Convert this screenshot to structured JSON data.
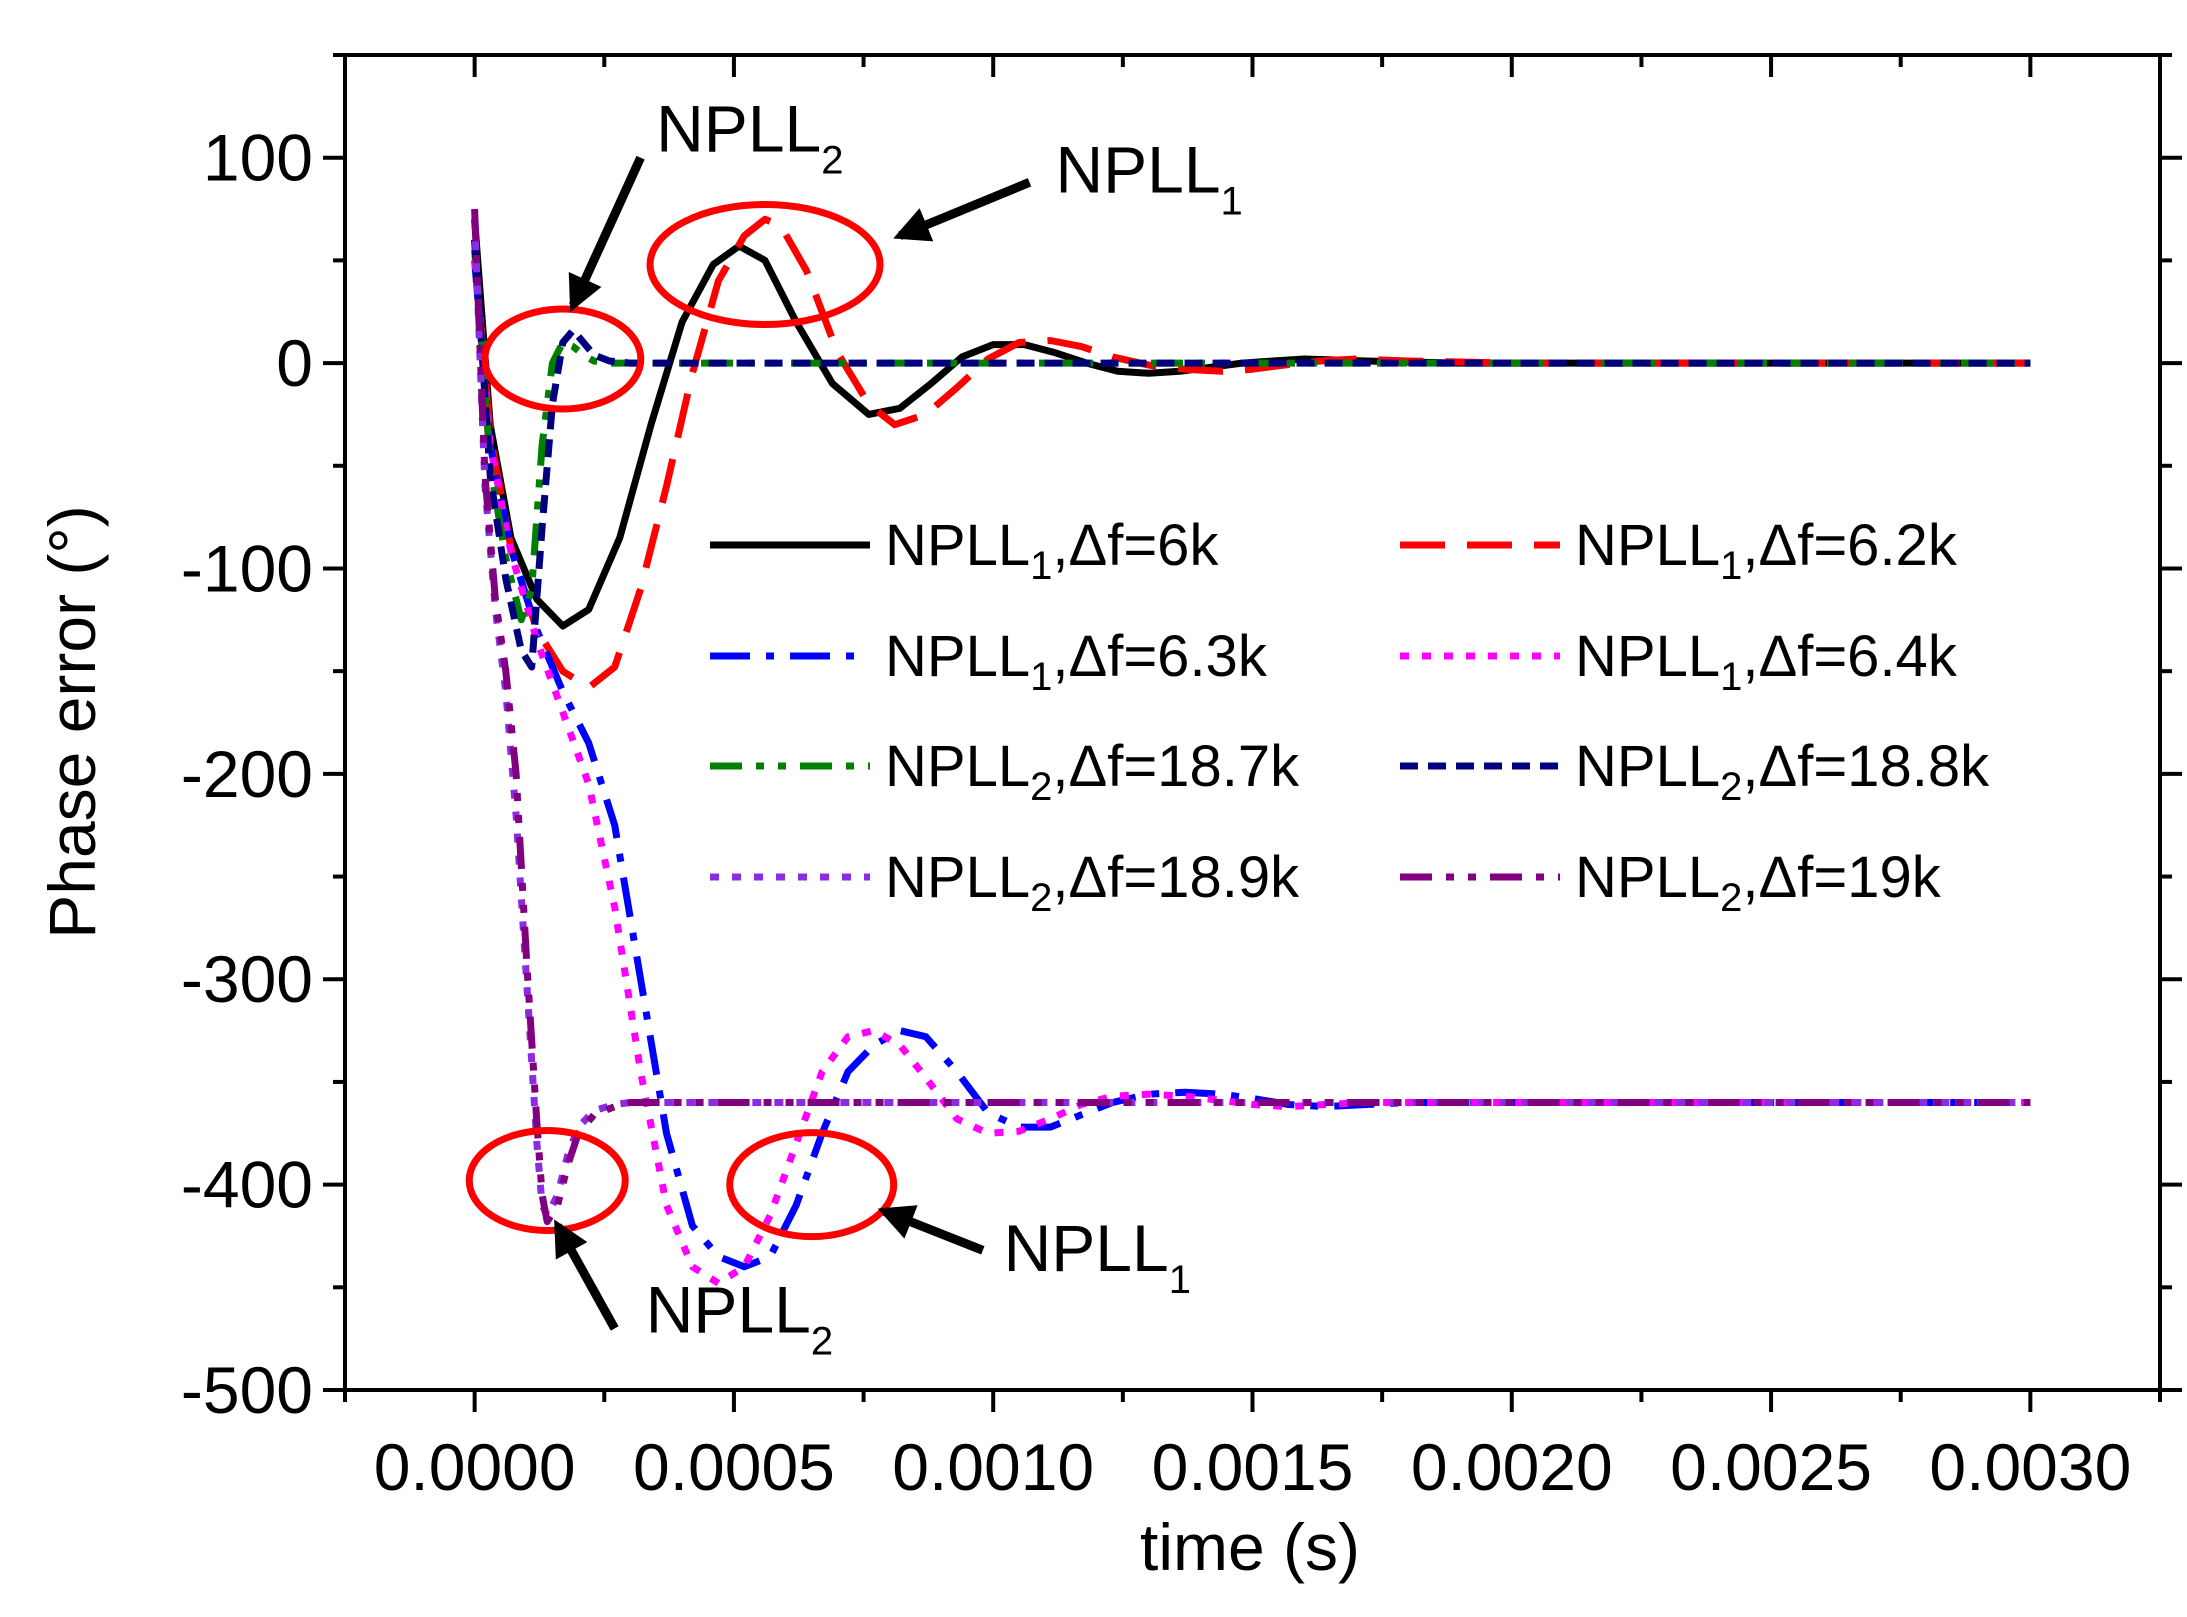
{
  "chart_data": {
    "type": "line",
    "title": "",
    "xlabel": "time (s)",
    "ylabel": "Phase error (°)",
    "xlim": [
      -0.00025,
      0.00325
    ],
    "ylim": [
      -500,
      150
    ],
    "xticks": [
      0.0,
      0.0005,
      0.001,
      0.0015,
      0.002,
      0.0025,
      0.003
    ],
    "xtick_labels": [
      "0.0000",
      "0.0005",
      "0.0010",
      "0.0015",
      "0.0020",
      "0.0025",
      "0.0030"
    ],
    "yticks": [
      100,
      0,
      -100,
      -200,
      -300,
      -400,
      -500
    ],
    "ytick_labels": [
      "100",
      "0",
      "-100",
      "-200",
      "-300",
      "-400",
      "-500"
    ],
    "grid": false,
    "legend_position": "center-right",
    "series": [
      {
        "name": "NPLL1,Δf=6k",
        "legend_main": "NPLL",
        "legend_sub": "1",
        "legend_tail": ",Δf=6k",
        "color": "#000000",
        "style": "solid",
        "x": [
          0,
          3e-05,
          7e-05,
          0.00012,
          0.00017,
          0.00022,
          0.00028,
          0.00034,
          0.0004,
          0.00046,
          0.00051,
          0.00056,
          0.00062,
          0.00069,
          0.00076,
          0.00082,
          0.00088,
          0.00094,
          0.001,
          0.00106,
          0.00112,
          0.00118,
          0.00124,
          0.0013,
          0.00136,
          0.00142,
          0.00148,
          0.00154,
          0.0016,
          0.00166,
          0.00172,
          0.0018,
          0.0019,
          0.002,
          0.0025,
          0.003
        ],
        "y": [
          70,
          -30,
          -85,
          -115,
          -128,
          -120,
          -85,
          -30,
          20,
          48,
          57,
          50,
          20,
          -10,
          -25,
          -22,
          -10,
          3,
          9,
          9,
          5,
          0,
          -4,
          -5,
          -4,
          -2,
          0,
          1,
          2,
          1.5,
          1,
          0.5,
          0,
          0,
          0,
          0
        ]
      },
      {
        "name": "NPLL1,Δf=6.2k",
        "legend_main": "NPLL",
        "legend_sub": "1",
        "legend_tail": ",Δf=6.2k",
        "color": "#ff0000",
        "style": "dash",
        "x": [
          0,
          3e-05,
          7e-05,
          0.00012,
          0.00017,
          0.00022,
          0.00027,
          0.00032,
          0.00037,
          0.00042,
          0.00047,
          0.00052,
          0.00056,
          0.00059,
          0.00064,
          0.0007,
          0.00076,
          0.00081,
          0.00087,
          0.00093,
          0.00099,
          0.00105,
          0.00111,
          0.00117,
          0.00123,
          0.0013,
          0.00137,
          0.00144,
          0.0015,
          0.00156,
          0.00163,
          0.0017,
          0.0018,
          0.0019,
          0.002,
          0.0025,
          0.003
        ],
        "y": [
          55,
          -35,
          -90,
          -130,
          -150,
          -158,
          -148,
          -110,
          -60,
          -5,
          40,
          62,
          70,
          67,
          45,
          5,
          -20,
          -30,
          -25,
          -12,
          2,
          10,
          11,
          8,
          3,
          -1,
          -3,
          -4,
          -3,
          -1,
          1,
          2,
          1,
          0.5,
          0,
          0,
          0
        ]
      },
      {
        "name": "NPLL1,Δf=6.3k",
        "legend_main": "NPLL",
        "legend_sub": "1",
        "legend_tail": ",Δf=6.3k",
        "color": "#0000ff",
        "style": "dashdot",
        "x": [
          0,
          3e-05,
          7e-05,
          0.00012,
          0.00017,
          0.00022,
          0.00027,
          0.00032,
          0.00037,
          0.00042,
          0.00047,
          0.00052,
          0.00057,
          0.00062,
          0.00067,
          0.00072,
          0.00077,
          0.00082,
          0.00087,
          0.00093,
          0.00099,
          0.00105,
          0.00111,
          0.00117,
          0.00123,
          0.0013,
          0.00137,
          0.00144,
          0.0015,
          0.00157,
          0.00164,
          0.00172,
          0.0018,
          0.0019,
          0.002,
          0.0025,
          0.003
        ],
        "y": [
          50,
          -40,
          -90,
          -130,
          -160,
          -185,
          -225,
          -300,
          -375,
          -420,
          -435,
          -440,
          -435,
          -410,
          -375,
          -345,
          -332,
          -325,
          -328,
          -345,
          -365,
          -372,
          -372,
          -366,
          -360,
          -356,
          -355,
          -356,
          -358,
          -361,
          -362,
          -361,
          -360,
          -360,
          -360,
          -360,
          -360
        ]
      },
      {
        "name": "NPLL1,Δf=6.4k",
        "legend_main": "NPLL",
        "legend_sub": "1",
        "legend_tail": ",Δf=6.4k",
        "color": "#ff00ff",
        "style": "dot",
        "x": [
          0,
          3e-05,
          7e-05,
          0.00012,
          0.00017,
          0.00022,
          0.00027,
          0.00032,
          0.00037,
          0.00042,
          0.00047,
          0.00052,
          0.00057,
          0.00062,
          0.00067,
          0.00072,
          0.00077,
          0.00082,
          0.00087,
          0.00093,
          0.00099,
          0.00105,
          0.00111,
          0.00117,
          0.00123,
          0.0013,
          0.00137,
          0.00144,
          0.0015,
          0.00157,
          0.00164,
          0.00172,
          0.0018,
          0.0019,
          0.002,
          0.0025,
          0.003
        ],
        "y": [
          50,
          -40,
          -92,
          -135,
          -170,
          -205,
          -265,
          -345,
          -410,
          -440,
          -448,
          -440,
          -415,
          -380,
          -345,
          -328,
          -325,
          -332,
          -348,
          -368,
          -375,
          -374,
          -368,
          -361,
          -357,
          -356,
          -357,
          -359,
          -361,
          -362,
          -361,
          -360,
          -360,
          -360,
          -360,
          -360,
          -360
        ]
      },
      {
        "name": "NPLL2,Δf=18.7k",
        "legend_main": "NPLL",
        "legend_sub": "2",
        "legend_tail": ",Δf=18.7k",
        "color": "#007f00",
        "style": "dashdotdot",
        "x": [
          0,
          3e-05,
          6e-05,
          9e-05,
          0.00011,
          0.00013,
          0.00015,
          0.00017,
          0.00019,
          0.00021,
          0.00023,
          0.00026,
          0.0003,
          0.00035,
          0.0005,
          0.001,
          0.002,
          0.003
        ],
        "y": [
          60,
          -50,
          -95,
          -125,
          -110,
          -40,
          0,
          10,
          8,
          4,
          1,
          0,
          0,
          0,
          0,
          0,
          0,
          0
        ]
      },
      {
        "name": "NPLL2,Δf=18.8k",
        "legend_main": "NPLL",
        "legend_sub": "2",
        "legend_tail": ",Δf=18.8k",
        "color": "#00007f",
        "style": "shortdash",
        "x": [
          0,
          3e-05,
          6e-05,
          9e-05,
          0.00011,
          0.00013,
          0.00015,
          0.00017,
          0.00019,
          0.00021,
          0.00023,
          0.00026,
          0.0003,
          0.00035,
          0.0005,
          0.001,
          0.002,
          0.003
        ],
        "y": [
          60,
          -55,
          -105,
          -140,
          -148,
          -80,
          -20,
          10,
          16,
          10,
          4,
          1,
          0,
          0,
          0,
          0,
          0,
          0
        ]
      },
      {
        "name": "NPLL2,Δf=18.9k",
        "legend_main": "NPLL",
        "legend_sub": "2",
        "legend_tail": ",Δf=18.9k",
        "color": "#8b2be2",
        "style": "dot",
        "x": [
          0,
          2e-05,
          4e-05,
          6e-05,
          8e-05,
          0.0001,
          0.00012,
          0.00013,
          0.00014,
          0.00016,
          0.00018,
          0.0002,
          0.00023,
          0.00027,
          0.0003,
          0.00035,
          0.0005,
          0.001,
          0.002,
          0.003
        ],
        "y": [
          70,
          -60,
          -120,
          -160,
          -220,
          -300,
          -380,
          -410,
          -415,
          -405,
          -385,
          -372,
          -364,
          -361,
          -360,
          -360,
          -360,
          -360,
          -360,
          -360
        ]
      },
      {
        "name": "NPLL2,Δf=19k",
        "legend_main": "NPLL",
        "legend_sub": "2",
        "legend_tail": ",Δf=19k",
        "color": "#800080",
        "style": "dashdotdot",
        "x": [
          0,
          2e-05,
          4e-05,
          6e-05,
          8e-05,
          0.0001,
          0.00012,
          0.00013,
          0.00014,
          0.00016,
          0.00018,
          0.0002,
          0.00023,
          0.00027,
          0.0003,
          0.00035,
          0.0005,
          0.001,
          0.002,
          0.003
        ],
        "y": [
          75,
          -55,
          -115,
          -150,
          -200,
          -290,
          -370,
          -405,
          -418,
          -410,
          -390,
          -375,
          -366,
          -362,
          -360,
          -360,
          -360,
          -360,
          -360,
          -360
        ]
      }
    ],
    "annotations": [
      {
        "id": "npll2-top",
        "main": "NPLL",
        "sub": "2",
        "ellipse_center": [
          0.00017,
          2
        ],
        "arrow_from": [
          0.00032,
          100
        ],
        "arrow_to": [
          0.00019,
          28
        ],
        "text_at": [
          0.00035,
          103
        ]
      },
      {
        "id": "npll1-top",
        "main": "NPLL",
        "sub": "1",
        "ellipse_center": [
          0.00056,
          48
        ],
        "arrow_from": [
          0.00107,
          88
        ],
        "arrow_to": [
          0.00082,
          62
        ],
        "text_at": [
          0.00112,
          83
        ]
      },
      {
        "id": "npll2-bottom",
        "main": "NPLL",
        "sub": "2",
        "ellipse_center": [
          0.00014,
          -398
        ],
        "arrow_from": [
          0.00027,
          -470
        ],
        "arrow_to": [
          0.00016,
          -420
        ],
        "text_at": [
          0.00033,
          -472
        ]
      },
      {
        "id": "npll1-bottom",
        "main": "NPLL",
        "sub": "1",
        "ellipse_center": [
          0.00065,
          -400
        ],
        "arrow_from": [
          0.00098,
          -432
        ],
        "arrow_to": [
          0.00079,
          -413
        ],
        "text_at": [
          0.00102,
          -442
        ]
      }
    ],
    "annotation_color": "#ff0000"
  }
}
